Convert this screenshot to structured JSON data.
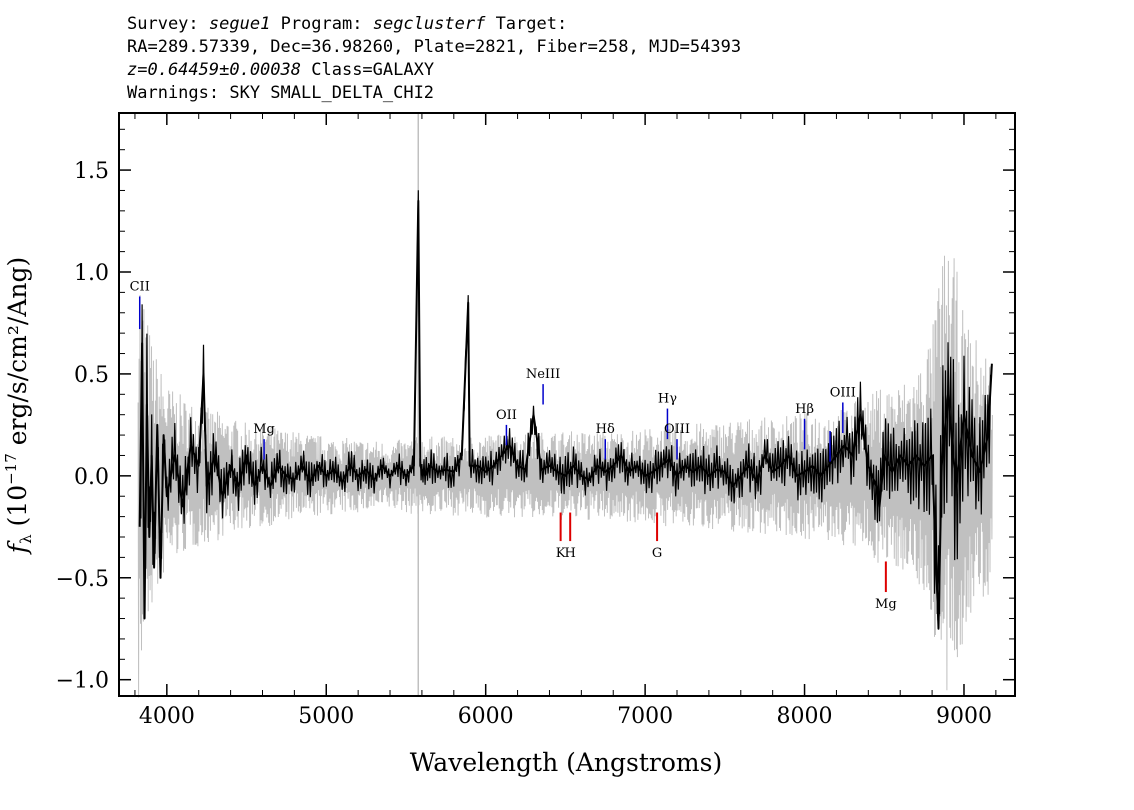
{
  "header": {
    "survey_label": "Survey:",
    "survey": "segue1",
    "program_label": "Program:",
    "program": "segclusterf",
    "target_label": "Target:",
    "line2": "RA=289.57339, Dec=36.98260, Plate=2821, Fiber=258, MJD=54393",
    "redshift": "z=0.64459±0.00038",
    "class_text": "Class=GALAXY",
    "warnings": "Warnings: SKY SMALL_DELTA_CHI2"
  },
  "chart_data": {
    "type": "line",
    "title": "",
    "xlabel": "Wavelength (Angstroms)",
    "ylabel": "f_λ (10^-17 erg/s/cm²/Ang)",
    "xlim": [
      3700,
      9320
    ],
    "ylim": [
      -1.08,
      1.78
    ],
    "x_ticks": [
      4000,
      5000,
      6000,
      7000,
      8000,
      9000
    ],
    "x_tick_labels": [
      "4000",
      "5000",
      "6000",
      "7000",
      "8000",
      "9000"
    ],
    "y_ticks": [
      -1.0,
      -0.5,
      0.0,
      0.5,
      1.0,
      1.5
    ],
    "y_tick_labels": [
      "−1.0",
      "−0.5",
      "0.0",
      "0.5",
      "1.0",
      "1.5"
    ],
    "grid": false,
    "colors": {
      "flux": "#000000",
      "error": "#c0c0c0",
      "emission": "#0000cc",
      "absorption": "#dd0000"
    },
    "series": [
      {
        "role": "flux",
        "x": [
          3830,
          3845,
          3860,
          3875,
          3890,
          3905,
          3920,
          3940,
          3960,
          3980,
          4000,
          4050,
          4100,
          4150,
          4200,
          4230,
          4250,
          4300,
          4350,
          4400,
          4450,
          4500,
          4550,
          4600,
          4650,
          4700,
          4750,
          4800,
          4850,
          4900,
          4950,
          5000,
          5050,
          5100,
          5150,
          5200,
          5250,
          5300,
          5350,
          5400,
          5450,
          5500,
          5550,
          5577,
          5590,
          5600,
          5620,
          5650,
          5700,
          5750,
          5800,
          5850,
          5890,
          5900,
          5950,
          6000,
          6050,
          6100,
          6150,
          6200,
          6250,
          6300,
          6350,
          6400,
          6450,
          6500,
          6550,
          6600,
          6650,
          6700,
          6750,
          6800,
          6850,
          6900,
          6950,
          7000,
          7050,
          7100,
          7150,
          7200,
          7250,
          7300,
          7350,
          7400,
          7450,
          7500,
          7550,
          7600,
          7650,
          7700,
          7750,
          7800,
          7850,
          7900,
          7950,
          8000,
          8050,
          8100,
          8150,
          8200,
          8250,
          8300,
          8350,
          8400,
          8450,
          8470,
          8500,
          8550,
          8600,
          8650,
          8700,
          8750,
          8800,
          8840,
          8860,
          8900,
          8950,
          9000,
          9050,
          9100,
          9150,
          9175
        ],
        "y": [
          -0.25,
          0.65,
          -0.7,
          0.35,
          -0.3,
          0.1,
          -0.45,
          0.25,
          -0.5,
          0.2,
          -0.1,
          0.1,
          -0.15,
          0.15,
          0.05,
          0.5,
          -0.05,
          0.1,
          -0.1,
          0.05,
          -0.05,
          0.1,
          -0.05,
          0.05,
          -0.05,
          0.05,
          0,
          -0.02,
          0.05,
          -0.03,
          0.05,
          0,
          0.03,
          -0.03,
          0.05,
          0,
          0.03,
          -0.02,
          0.05,
          0,
          0.05,
          0,
          0.05,
          1.35,
          0.05,
          0.03,
          0,
          0.05,
          0.02,
          0.03,
          0.02,
          0.1,
          0.85,
          0.05,
          0.05,
          0.02,
          0.05,
          0.1,
          0.15,
          0.05,
          0.03,
          0.3,
          0.03,
          0.05,
          0.02,
          0,
          0.05,
          0,
          -0.02,
          0.05,
          0.02,
          0.05,
          0.1,
          0.02,
          0.05,
          0,
          0.02,
          0.05,
          0.08,
          0,
          0.05,
          0.02,
          0.05,
          0,
          0.03,
          0.02,
          -0.05,
          0,
          0.05,
          -0.03,
          0.1,
          0.02,
          0.05,
          0.1,
          0,
          0.02,
          0.05,
          0,
          0.05,
          0.1,
          0.15,
          0.1,
          0.3,
          0.05,
          -0.05,
          -0.15,
          0.1,
          0.02,
          0.1,
          0.05,
          0.1,
          0.05,
          0.1,
          -0.75,
          0.05,
          0.4,
          -0.05,
          0.3,
          0.1,
          0.02,
          0.2,
          0.55
        ]
      },
      {
        "role": "error",
        "x": [
          3820,
          3850,
          3880,
          3910,
          3940,
          3970,
          4000,
          4100,
          4200,
          4300,
          4400,
          4500,
          4600,
          4700,
          4800,
          4900,
          5000,
          5200,
          5400,
          5580,
          5800,
          6000,
          6200,
          6400,
          6600,
          6800,
          7000,
          7200,
          7400,
          7600,
          7800,
          8000,
          8200,
          8400,
          8500,
          8600,
          8700,
          8800,
          8850,
          8900,
          8950,
          9000,
          9100,
          9180
        ],
        "y": [
          0.9,
          0.75,
          0.6,
          0.5,
          0.45,
          0.4,
          0.35,
          0.3,
          0.27,
          0.25,
          0.22,
          0.2,
          0.2,
          0.18,
          0.17,
          0.16,
          0.15,
          0.14,
          0.13,
          0.15,
          0.15,
          0.16,
          0.16,
          0.17,
          0.17,
          0.17,
          0.18,
          0.2,
          0.2,
          0.22,
          0.22,
          0.24,
          0.26,
          0.3,
          0.35,
          0.35,
          0.4,
          0.55,
          0.8,
          0.9,
          0.8,
          0.6,
          0.5,
          0.45
        ]
      }
    ],
    "spike": {
      "x": 5577,
      "range": [
        -1.08,
        1.78
      ]
    },
    "lines": [
      {
        "label": "CII",
        "x": 3830,
        "y1": 0.72,
        "y2": 0.88,
        "kind": "emission",
        "label_pos": "above"
      },
      {
        "label": "Mg",
        "x": 4610,
        "y1": 0.08,
        "y2": 0.18,
        "kind": "emission",
        "label_pos": "above"
      },
      {
        "label": "OII",
        "x": 6130,
        "y1": 0.15,
        "y2": 0.25,
        "kind": "emission",
        "label_pos": "above"
      },
      {
        "label": "NeIII",
        "x": 6360,
        "y1": 0.35,
        "y2": 0.45,
        "kind": "emission",
        "label_pos": "above"
      },
      {
        "label": "Hδ",
        "x": 6750,
        "y1": 0.08,
        "y2": 0.18,
        "kind": "emission",
        "label_pos": "above"
      },
      {
        "label": "Hγ",
        "x": 7140,
        "y1": 0.18,
        "y2": 0.33,
        "kind": "emission",
        "label_pos": "above"
      },
      {
        "label": "OIII",
        "x": 7200,
        "y1": 0.08,
        "y2": 0.18,
        "kind": "emission",
        "label_pos": "above"
      },
      {
        "label": "Hβ",
        "x": 8000,
        "y1": 0.13,
        "y2": 0.28,
        "kind": "emission",
        "label_pos": "above"
      },
      {
        "label": "",
        "x": 8160,
        "y1": 0.07,
        "y2": 0.22,
        "kind": "emission",
        "label_pos": "above"
      },
      {
        "label": "OIII",
        "x": 8240,
        "y1": 0.21,
        "y2": 0.36,
        "kind": "emission",
        "label_pos": "above"
      },
      {
        "label": "K",
        "x": 6470,
        "y1": -0.32,
        "y2": -0.18,
        "kind": "absorption",
        "label_pos": "below"
      },
      {
        "label": "H",
        "x": 6530,
        "y1": -0.32,
        "y2": -0.18,
        "kind": "absorption",
        "label_pos": "below"
      },
      {
        "label": "G",
        "x": 7075,
        "y1": -0.32,
        "y2": -0.18,
        "kind": "absorption",
        "label_pos": "below"
      },
      {
        "label": "Mg",
        "x": 8510,
        "y1": -0.57,
        "y2": -0.42,
        "kind": "absorption",
        "label_pos": "below"
      }
    ]
  }
}
